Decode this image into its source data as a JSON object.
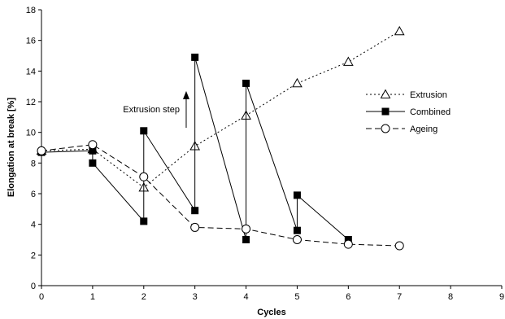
{
  "chart_data": {
    "type": "line",
    "title": "",
    "xlabel": "Cycles",
    "ylabel": "Elongation at break [%]",
    "xlim": [
      0,
      9
    ],
    "ylim": [
      0,
      18
    ],
    "x_ticks": [
      0,
      1,
      2,
      3,
      4,
      5,
      6,
      7,
      8,
      9
    ],
    "y_ticks": [
      0,
      2,
      4,
      6,
      8,
      10,
      12,
      14,
      16,
      18
    ],
    "grid": false,
    "legend_position": "right",
    "series": [
      {
        "name": "Extrusion",
        "line_style": "dotted",
        "marker": "open-triangle",
        "x": [
          0,
          1,
          2,
          3,
          4,
          5,
          6,
          7
        ],
        "y": [
          8.8,
          8.9,
          6.4,
          9.1,
          11.1,
          13.2,
          14.6,
          16.6
        ]
      },
      {
        "name": "Combined",
        "line_style": "solid",
        "marker": "filled-square",
        "x": [
          0,
          1,
          1,
          2,
          2,
          3,
          3,
          4,
          4,
          5,
          5,
          6
        ],
        "y": [
          8.7,
          8.8,
          8.0,
          4.2,
          10.1,
          4.9,
          14.9,
          3.0,
          13.2,
          3.6,
          5.9,
          3.0
        ],
        "vertical_links": [
          [
            1,
            2
          ],
          [
            3,
            4
          ],
          [
            5,
            6
          ],
          [
            7,
            8
          ],
          [
            9,
            10
          ]
        ]
      },
      {
        "name": "Ageing",
        "line_style": "dashed",
        "marker": "open-circle",
        "x": [
          0,
          1,
          2,
          3,
          4,
          5,
          6,
          7
        ],
        "y": [
          8.8,
          9.2,
          7.1,
          3.8,
          3.7,
          3.0,
          2.7,
          2.6
        ]
      }
    ],
    "annotations": [
      {
        "text": "Extrusion step",
        "arrow_x": 2.83,
        "arrow_from_y": 10.3,
        "arrow_to_y": 12.7
      }
    ]
  }
}
